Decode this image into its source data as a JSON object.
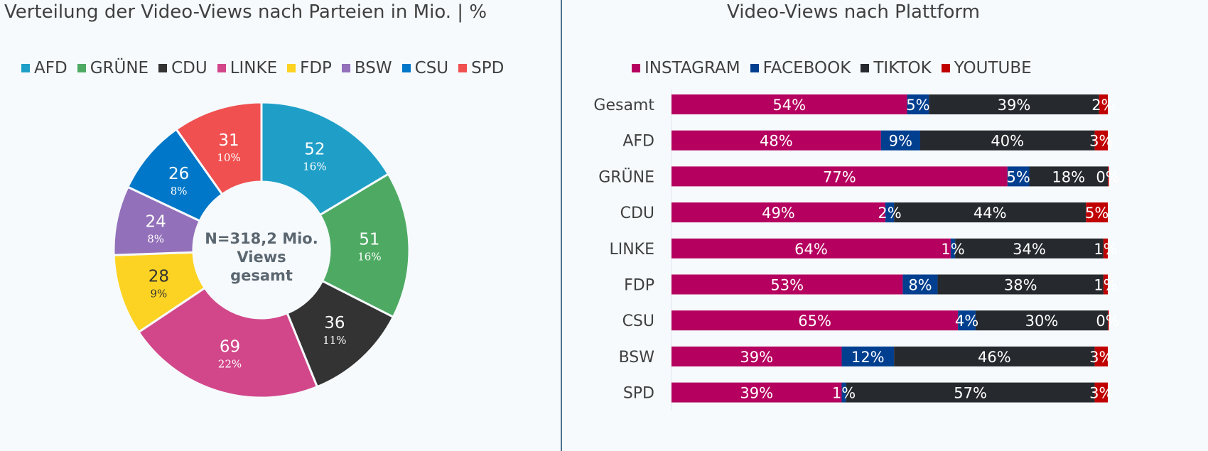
{
  "chart_data": [
    {
      "type": "pie",
      "variant": "donut",
      "title": "Verteilung der Video-Views nach Parteien in Mio. | %",
      "center_label": [
        "N=318,2 Mio.",
        "Views",
        "gesamt"
      ],
      "legend_position": "top",
      "legend": [
        "AFD",
        "GRÜNE",
        "CDU",
        "LINKE",
        "FDP",
        "BSW",
        "CSU",
        "SPD"
      ],
      "slices": [
        {
          "label": "AFD",
          "value": 52,
          "percent": "16%",
          "color": "#1f9fc8"
        },
        {
          "label": "GRÜNE",
          "value": 51,
          "percent": "16%",
          "color": "#4eaa63"
        },
        {
          "label": "CDU",
          "value": 36,
          "percent": "11%",
          "color": "#333333"
        },
        {
          "label": "LINKE",
          "value": 69,
          "percent": "22%",
          "color": "#d2478a"
        },
        {
          "label": "FDP",
          "value": 28,
          "percent": "9%",
          "color": "#fdd323"
        },
        {
          "label": "BSW",
          "value": 24,
          "percent": "8%",
          "color": "#9370ba"
        },
        {
          "label": "CSU",
          "value": 26,
          "percent": "8%",
          "color": "#0077c8"
        },
        {
          "label": "SPD",
          "value": 31,
          "percent": "10%",
          "color": "#f05050"
        }
      ]
    },
    {
      "type": "bar",
      "orientation": "horizontal",
      "stacked": "100%",
      "title": "Video-Views nach Plattform",
      "legend_position": "top",
      "categories": [
        "Gesamt",
        "AFD",
        "GRÜNE",
        "CDU",
        "LINKE",
        "FDP",
        "CSU",
        "BSW",
        "SPD"
      ],
      "series": [
        {
          "name": "INSTAGRAM",
          "color": "#b5005f",
          "values": [
            54,
            48,
            77,
            49,
            64,
            53,
            65,
            39,
            39
          ]
        },
        {
          "name": "FACEBOOK",
          "color": "#003f8f",
          "values": [
            5,
            9,
            5,
            2,
            1,
            8,
            4,
            12,
            1
          ]
        },
        {
          "name": "TIKTOK",
          "color": "#26292e",
          "values": [
            39,
            40,
            18,
            44,
            34,
            38,
            30,
            46,
            57
          ]
        },
        {
          "name": "YOUTUBE",
          "color": "#c00000",
          "values": [
            2,
            3,
            0,
            5,
            1,
            1,
            0,
            3,
            3
          ]
        }
      ],
      "xlim": [
        0,
        100
      ],
      "grid": false
    }
  ]
}
